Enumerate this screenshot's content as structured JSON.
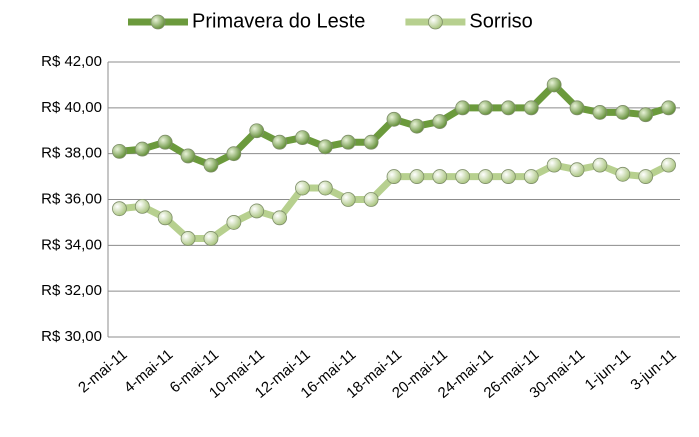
{
  "chart_data": {
    "type": "line",
    "categories": [
      "2-mai-11",
      null,
      "4-mai-11",
      null,
      "6-mai-11",
      null,
      "10-mai-11",
      null,
      "12-mai-11",
      null,
      "16-mai-11",
      null,
      "18-mai-11",
      null,
      "20-mai-11",
      null,
      "24-mai-11",
      null,
      "26-mai-11",
      null,
      "30-mai-11",
      null,
      "1-jun-11",
      null,
      "3-jun-11"
    ],
    "series": [
      {
        "name": "Primavera do Leste",
        "color": "#6b9a3c",
        "values": [
          38.1,
          38.2,
          38.5,
          37.9,
          37.5,
          38.0,
          39.0,
          38.5,
          38.7,
          38.3,
          38.5,
          38.5,
          39.5,
          39.2,
          39.4,
          40.0,
          40.0,
          40.0,
          40.0,
          41.0,
          40.0,
          39.8,
          39.8,
          39.7,
          40.0
        ]
      },
      {
        "name": "Sorriso",
        "color": "#b7d08f",
        "values": [
          35.6,
          35.7,
          35.2,
          34.3,
          34.3,
          35.0,
          35.5,
          35.2,
          36.5,
          36.5,
          36.0,
          36.0,
          37.0,
          37.0,
          37.0,
          37.0,
          37.0,
          37.0,
          37.0,
          37.5,
          37.3,
          37.5,
          37.1,
          37.0,
          37.5
        ]
      }
    ],
    "ylim": [
      30,
      42
    ],
    "yticks": [
      {
        "value": 30,
        "label": "R$ 30,00"
      },
      {
        "value": 32,
        "label": "R$ 32,00"
      },
      {
        "value": 34,
        "label": "R$ 34,00"
      },
      {
        "value": 36,
        "label": "R$ 36,00"
      },
      {
        "value": 38,
        "label": "R$ 38,00"
      },
      {
        "value": 40,
        "label": "R$ 40,00"
      },
      {
        "value": 42,
        "label": "R$ 42,00"
      }
    ],
    "grid": true,
    "legend": "top"
  }
}
